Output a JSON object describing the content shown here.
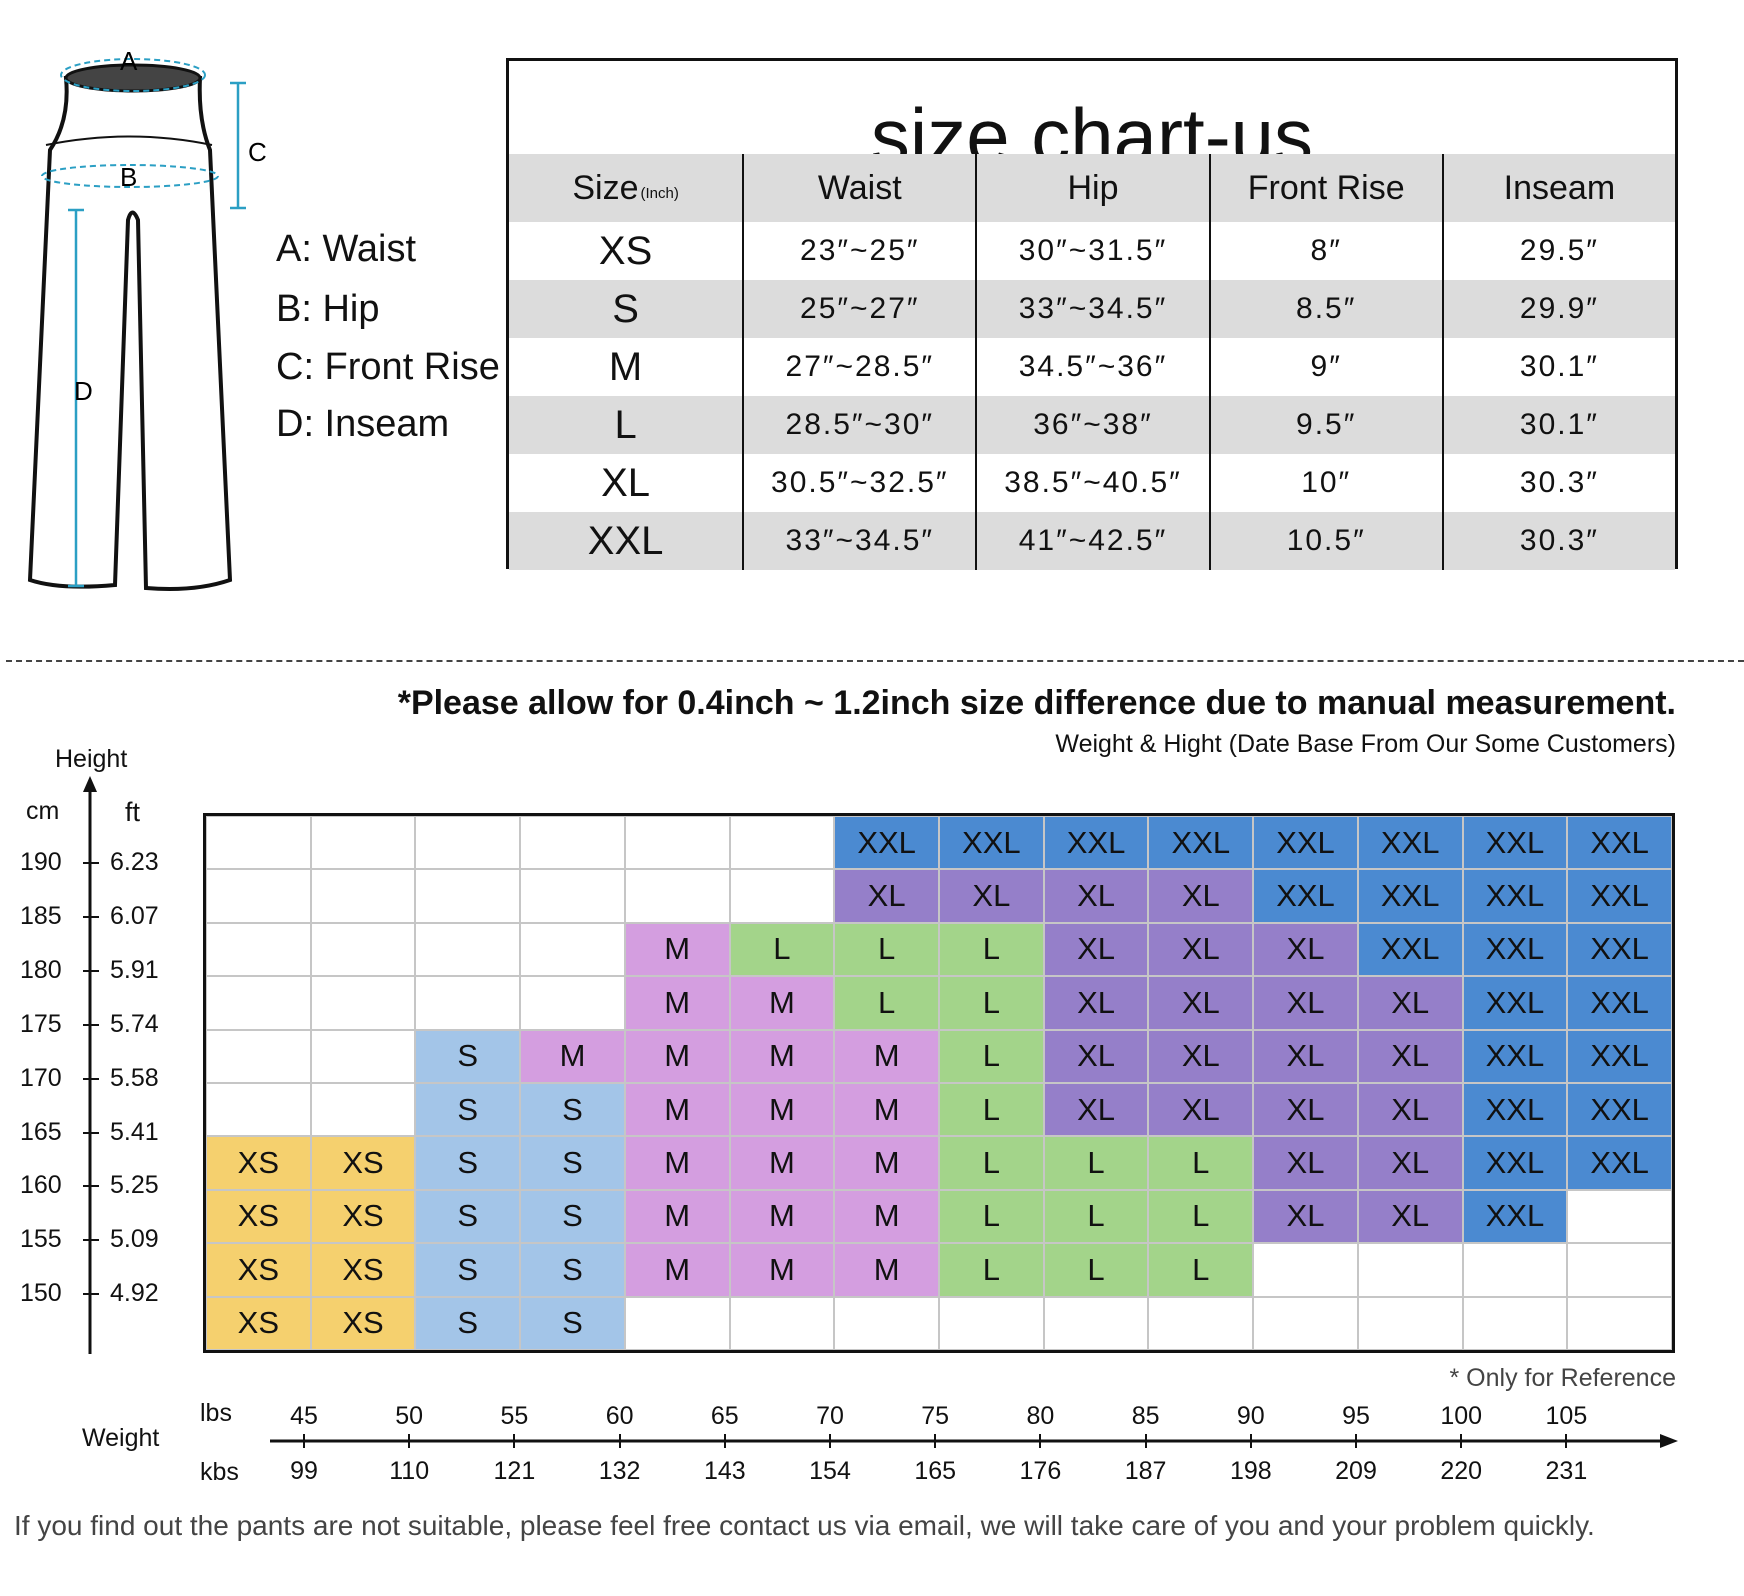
{
  "diagram": {
    "labels": {
      "a": "A",
      "b": "B",
      "c": "C",
      "d": "D"
    }
  },
  "legend": [
    {
      "letter": "A",
      "text": "A: Waist"
    },
    {
      "letter": "B",
      "text": "B: Hip"
    },
    {
      "letter": "C",
      "text": "C: Front Rise"
    },
    {
      "letter": "D",
      "text": "D: Inseam"
    }
  ],
  "size_table": {
    "title": "size chart-us",
    "headers": [
      "Size",
      "Waist",
      "Hip",
      "Front Rise",
      "Inseam"
    ],
    "size_unit": "(Inch)",
    "rows": [
      [
        "XS",
        "23″~25″",
        "30″~31.5″",
        "8″",
        "29.5″"
      ],
      [
        "S",
        "25″~27″",
        "33″~34.5″",
        "8.5″",
        "29.9″"
      ],
      [
        "M",
        "27″~28.5″",
        "34.5″~36″",
        "9″",
        "30.1″"
      ],
      [
        "L",
        "28.5″~30″",
        "36″~38″",
        "9.5″",
        "30.1″"
      ],
      [
        "XL",
        "30.5″~32.5″",
        "38.5″~40.5″",
        "10″",
        "30.3″"
      ],
      [
        "XXL",
        "33″~34.5″",
        "41″~42.5″",
        "10.5″",
        "30.3″"
      ]
    ]
  },
  "note": "Please allow for 0.4inch ~ 1.2inch size difference due to manual measurement.",
  "note_marker": "*",
  "chart_data": {
    "type": "heatmap",
    "title": "",
    "subtitle": "Weight & Hight (Date Base From Our Some Customers)",
    "y_axis": {
      "title": "Height",
      "units": [
        "cm",
        "ft"
      ],
      "ticks_cm": [
        "190",
        "185",
        "180",
        "175",
        "170",
        "165",
        "160",
        "155",
        "150"
      ],
      "ticks_ft": [
        "6.23",
        "6.07",
        "5.91",
        "5.74",
        "5.58",
        "5.41",
        "5.25",
        "5.09",
        "4.92"
      ]
    },
    "x_axis": {
      "title": "Weight",
      "units": [
        "lbs",
        "kbs"
      ],
      "ticks_top": [
        "45",
        "50",
        "55",
        "60",
        "65",
        "70",
        "75",
        "80",
        "85",
        "90",
        "95",
        "100",
        "105"
      ],
      "ticks_bottom": [
        "99",
        "110",
        "121",
        "132",
        "143",
        "154",
        "165",
        "176",
        "187",
        "198",
        "209",
        "220",
        "231"
      ]
    },
    "colors": {
      "XS": "#f5d06e",
      "S": "#a3c5e8",
      "M": "#d49ee0",
      "L": "#a3d48a",
      "XL": "#957fc9",
      "XXL": "#4b8ad1",
      "": "#ffffff"
    },
    "grid": [
      [
        "",
        "",
        "",
        "",
        "",
        "",
        "XXL",
        "XXL",
        "XXL",
        "XXL",
        "XXL",
        "XXL",
        "XXL",
        "XXL"
      ],
      [
        "",
        "",
        "",
        "",
        "",
        "",
        "XL",
        "XL",
        "XL",
        "XL",
        "XXL",
        "XXL",
        "XXL",
        "XXL"
      ],
      [
        "",
        "",
        "",
        "",
        "M",
        "L",
        "L",
        "L",
        "XL",
        "XL",
        "XL",
        "XXL",
        "XXL",
        "XXL"
      ],
      [
        "",
        "",
        "",
        "",
        "M",
        "M",
        "L",
        "L",
        "XL",
        "XL",
        "XL",
        "XL",
        "XXL",
        "XXL"
      ],
      [
        "",
        "",
        "S",
        "M",
        "M",
        "M",
        "M",
        "L",
        "XL",
        "XL",
        "XL",
        "XL",
        "XXL",
        "XXL"
      ],
      [
        "",
        "",
        "S",
        "S",
        "M",
        "M",
        "M",
        "L",
        "XL",
        "XL",
        "XL",
        "XL",
        "XXL",
        "XXL"
      ],
      [
        "XS",
        "XS",
        "S",
        "S",
        "M",
        "M",
        "M",
        "L",
        "L",
        "L",
        "XL",
        "XL",
        "XXL",
        "XXL"
      ],
      [
        "XS",
        "XS",
        "S",
        "S",
        "M",
        "M",
        "M",
        "L",
        "L",
        "L",
        "XL",
        "XL",
        "XXL",
        ""
      ],
      [
        "XS",
        "XS",
        "S",
        "S",
        "M",
        "M",
        "M",
        "L",
        "L",
        "L",
        "",
        "",
        "",
        ""
      ],
      [
        "XS",
        "XS",
        "S",
        "S",
        "",
        "",
        "",
        "",
        "",
        "",
        "",
        "",
        "",
        ""
      ]
    ],
    "grid_on": true
  },
  "reference_note": "* Only for Reference",
  "footer": "If you find out the pants are not suitable, please feel free contact us via email, we will take care of you and your problem quickly."
}
